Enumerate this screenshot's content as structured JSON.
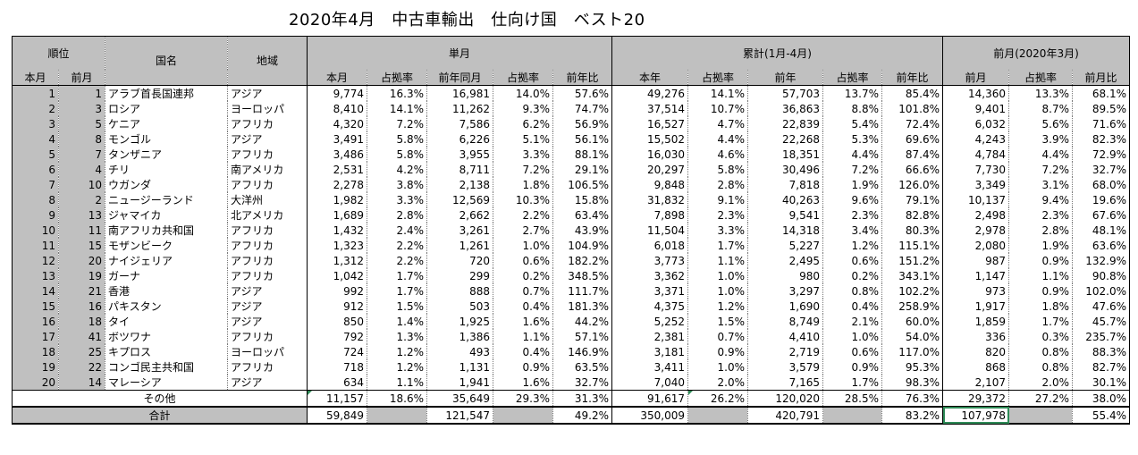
{
  "title": "2020年4月　中古車輸出　仕向け国　ベスト20",
  "headers": {
    "rank": "順位",
    "country": "国名",
    "region": "地域",
    "monthly": "単月",
    "cumulative": "累計(1月-4月)",
    "prev_month": "前月(2020年3月)",
    "this_month": "本月",
    "last_month": "前月",
    "share": "占拠率",
    "prev_year_same_month": "前年同月",
    "yoy": "前年比",
    "this_year": "本年",
    "prev_year": "前年",
    "mom": "前月比"
  },
  "rows": [
    [
      "1",
      "1",
      "アラブ首長国連邦",
      "アジア",
      "9,774",
      "16.3%",
      "16,981",
      "14.0%",
      "57.6%",
      "49,276",
      "14.1%",
      "57,703",
      "13.7%",
      "85.4%",
      "14,360",
      "13.3%",
      "68.1%"
    ],
    [
      "2",
      "3",
      "ロシア",
      "ヨーロッパ",
      "8,410",
      "14.1%",
      "11,262",
      "9.3%",
      "74.7%",
      "37,514",
      "10.7%",
      "36,863",
      "8.8%",
      "101.8%",
      "9,401",
      "8.7%",
      "89.5%"
    ],
    [
      "3",
      "5",
      "ケニア",
      "アフリカ",
      "4,320",
      "7.2%",
      "7,586",
      "6.2%",
      "56.9%",
      "16,527",
      "4.7%",
      "22,839",
      "5.4%",
      "72.4%",
      "6,032",
      "5.6%",
      "71.6%"
    ],
    [
      "4",
      "8",
      "モンゴル",
      "アジア",
      "3,491",
      "5.8%",
      "6,226",
      "5.1%",
      "56.1%",
      "15,502",
      "4.4%",
      "22,268",
      "5.3%",
      "69.6%",
      "4,243",
      "3.9%",
      "82.3%"
    ],
    [
      "5",
      "7",
      "タンザニア",
      "アフリカ",
      "3,486",
      "5.8%",
      "3,955",
      "3.3%",
      "88.1%",
      "16,030",
      "4.6%",
      "18,351",
      "4.4%",
      "87.4%",
      "4,784",
      "4.4%",
      "72.9%"
    ],
    [
      "6",
      "4",
      "チリ",
      "南アメリカ",
      "2,531",
      "4.2%",
      "8,711",
      "7.2%",
      "29.1%",
      "20,297",
      "5.8%",
      "30,496",
      "7.2%",
      "66.6%",
      "7,730",
      "7.2%",
      "32.7%"
    ],
    [
      "7",
      "10",
      "ウガンダ",
      "アフリカ",
      "2,278",
      "3.8%",
      "2,138",
      "1.8%",
      "106.5%",
      "9,848",
      "2.8%",
      "7,818",
      "1.9%",
      "126.0%",
      "3,349",
      "3.1%",
      "68.0%"
    ],
    [
      "8",
      "2",
      "ニュージーランド",
      "大洋州",
      "1,982",
      "3.3%",
      "12,569",
      "10.3%",
      "15.8%",
      "31,832",
      "9.1%",
      "40,263",
      "9.6%",
      "79.1%",
      "10,137",
      "9.4%",
      "19.6%"
    ],
    [
      "9",
      "13",
      "ジャマイカ",
      "北アメリカ",
      "1,689",
      "2.8%",
      "2,662",
      "2.2%",
      "63.4%",
      "7,898",
      "2.3%",
      "9,541",
      "2.3%",
      "82.8%",
      "2,498",
      "2.3%",
      "67.6%"
    ],
    [
      "10",
      "11",
      "南アフリカ共和国",
      "アフリカ",
      "1,432",
      "2.4%",
      "3,261",
      "2.7%",
      "43.9%",
      "11,504",
      "3.3%",
      "14,318",
      "3.4%",
      "80.3%",
      "2,978",
      "2.8%",
      "48.1%"
    ],
    [
      "11",
      "15",
      "モザンビーク",
      "アフリカ",
      "1,323",
      "2.2%",
      "1,261",
      "1.0%",
      "104.9%",
      "6,018",
      "1.7%",
      "5,227",
      "1.2%",
      "115.1%",
      "2,080",
      "1.9%",
      "63.6%"
    ],
    [
      "12",
      "20",
      "ナイジェリア",
      "アフリカ",
      "1,312",
      "2.2%",
      "720",
      "0.6%",
      "182.2%",
      "3,773",
      "1.1%",
      "2,495",
      "0.6%",
      "151.2%",
      "987",
      "0.9%",
      "132.9%"
    ],
    [
      "13",
      "19",
      "ガーナ",
      "アフリカ",
      "1,042",
      "1.7%",
      "299",
      "0.2%",
      "348.5%",
      "3,362",
      "1.0%",
      "980",
      "0.2%",
      "343.1%",
      "1,147",
      "1.1%",
      "90.8%"
    ],
    [
      "14",
      "21",
      "香港",
      "アジア",
      "992",
      "1.7%",
      "888",
      "0.7%",
      "111.7%",
      "3,371",
      "1.0%",
      "3,297",
      "0.8%",
      "102.2%",
      "973",
      "0.9%",
      "102.0%"
    ],
    [
      "15",
      "16",
      "パキスタン",
      "アジア",
      "912",
      "1.5%",
      "503",
      "0.4%",
      "181.3%",
      "4,375",
      "1.2%",
      "1,690",
      "0.4%",
      "258.9%",
      "1,917",
      "1.8%",
      "47.6%"
    ],
    [
      "16",
      "18",
      "タイ",
      "アジア",
      "850",
      "1.4%",
      "1,925",
      "1.6%",
      "44.2%",
      "5,252",
      "1.5%",
      "8,749",
      "2.1%",
      "60.0%",
      "1,859",
      "1.7%",
      "45.7%"
    ],
    [
      "17",
      "41",
      "ボツワナ",
      "アフリカ",
      "792",
      "1.3%",
      "1,386",
      "1.1%",
      "57.1%",
      "2,381",
      "0.7%",
      "4,410",
      "1.0%",
      "54.0%",
      "336",
      "0.3%",
      "235.7%"
    ],
    [
      "18",
      "25",
      "キプロス",
      "ヨーロッパ",
      "724",
      "1.2%",
      "493",
      "0.4%",
      "146.9%",
      "3,181",
      "0.9%",
      "2,719",
      "0.6%",
      "117.0%",
      "820",
      "0.8%",
      "88.3%"
    ],
    [
      "19",
      "22",
      "コンゴ民主共和国",
      "アフリカ",
      "718",
      "1.2%",
      "1,131",
      "0.9%",
      "63.5%",
      "3,411",
      "1.0%",
      "3,579",
      "0.9%",
      "95.3%",
      "868",
      "0.8%",
      "82.7%"
    ],
    [
      "20",
      "14",
      "マレーシア",
      "アジア",
      "634",
      "1.1%",
      "1,941",
      "1.6%",
      "32.7%",
      "7,040",
      "2.0%",
      "7,165",
      "1.7%",
      "98.3%",
      "2,107",
      "2.0%",
      "30.1%"
    ]
  ],
  "other": {
    "label": "その他",
    "values": [
      "11,157",
      "18.6%",
      "35,649",
      "29.3%",
      "31.3%",
      "91,617",
      "26.2%",
      "120,020",
      "28.5%",
      "76.3%",
      "29,372",
      "27.2%",
      "38.0%"
    ]
  },
  "total": {
    "label": "合計",
    "values": [
      "59,849",
      "",
      "121,547",
      "",
      "49.2%",
      "350,009",
      "",
      "420,791",
      "",
      "83.2%",
      "107,978",
      "",
      "55.4%"
    ]
  },
  "colors": {
    "header_gray": "#c0c0c0",
    "selection_green": "#2e8b57"
  }
}
